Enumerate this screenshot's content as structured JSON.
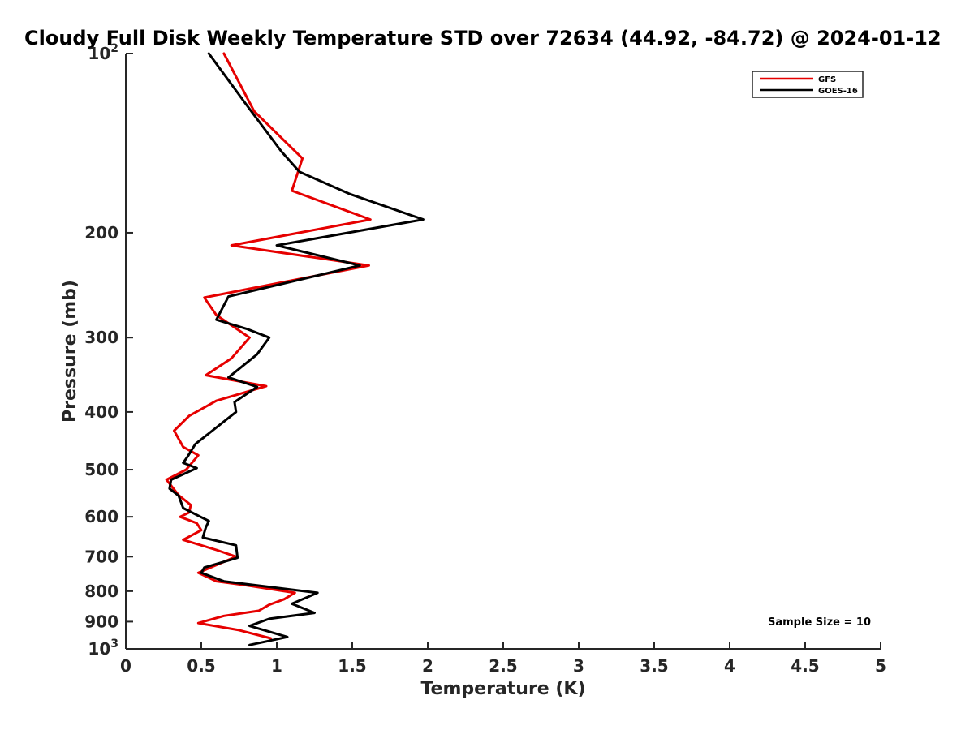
{
  "chart_data": {
    "type": "line",
    "title": "Cloudy Full Disk Weekly Temperature STD over 72634 (44.92, -84.72) @ 2024-01-12",
    "xlabel": "Temperature (K)",
    "ylabel": "Pressure (mb)",
    "xlim": [
      0,
      5
    ],
    "ylim": [
      100,
      1000
    ],
    "y_scale": "log",
    "y_reversed": true,
    "x_ticks": [
      "0",
      "0.5",
      "1",
      "1.5",
      "2",
      "2.5",
      "3",
      "3.5",
      "4",
      "4.5",
      "5"
    ],
    "y_ticks": [
      {
        "value": 100,
        "base": "10",
        "exp": "2"
      },
      {
        "value": 200,
        "label": "200"
      },
      {
        "value": 300,
        "label": "300"
      },
      {
        "value": 400,
        "label": "400"
      },
      {
        "value": 500,
        "label": "500"
      },
      {
        "value": 600,
        "label": "600"
      },
      {
        "value": 700,
        "label": "700"
      },
      {
        "value": 800,
        "label": "800"
      },
      {
        "value": 900,
        "label": "900"
      },
      {
        "value": 1000,
        "base": "10",
        "exp": "3"
      }
    ],
    "grid": false,
    "legend_position": "top-right",
    "annotation": "Sample Size = 10",
    "series": [
      {
        "name": "GFS",
        "color": "#e60000",
        "points": [
          {
            "x": 0.65,
            "y": 100
          },
          {
            "x": 0.85,
            "y": 125
          },
          {
            "x": 1.17,
            "y": 150
          },
          {
            "x": 1.1,
            "y": 170
          },
          {
            "x": 1.62,
            "y": 190
          },
          {
            "x": 0.7,
            "y": 210
          },
          {
            "x": 1.61,
            "y": 227
          },
          {
            "x": 0.52,
            "y": 257
          },
          {
            "x": 0.6,
            "y": 275
          },
          {
            "x": 0.82,
            "y": 300
          },
          {
            "x": 0.7,
            "y": 325
          },
          {
            "x": 0.53,
            "y": 347
          },
          {
            "x": 0.93,
            "y": 362
          },
          {
            "x": 0.6,
            "y": 383
          },
          {
            "x": 0.42,
            "y": 406
          },
          {
            "x": 0.32,
            "y": 430
          },
          {
            "x": 0.38,
            "y": 458
          },
          {
            "x": 0.48,
            "y": 473
          },
          {
            "x": 0.4,
            "y": 500
          },
          {
            "x": 0.27,
            "y": 520
          },
          {
            "x": 0.35,
            "y": 552
          },
          {
            "x": 0.43,
            "y": 573
          },
          {
            "x": 0.42,
            "y": 590
          },
          {
            "x": 0.36,
            "y": 600
          },
          {
            "x": 0.47,
            "y": 615
          },
          {
            "x": 0.5,
            "y": 632
          },
          {
            "x": 0.38,
            "y": 656
          },
          {
            "x": 0.6,
            "y": 682
          },
          {
            "x": 0.73,
            "y": 700
          },
          {
            "x": 0.48,
            "y": 745
          },
          {
            "x": 0.6,
            "y": 770
          },
          {
            "x": 0.8,
            "y": 782
          },
          {
            "x": 1.12,
            "y": 805
          },
          {
            "x": 1.05,
            "y": 825
          },
          {
            "x": 0.95,
            "y": 843
          },
          {
            "x": 0.88,
            "y": 863
          },
          {
            "x": 0.65,
            "y": 880
          },
          {
            "x": 0.48,
            "y": 905
          },
          {
            "x": 0.75,
            "y": 930
          },
          {
            "x": 0.96,
            "y": 960
          }
        ]
      },
      {
        "name": "GOES-16",
        "color": "#000000",
        "points": [
          {
            "x": 0.55,
            "y": 100
          },
          {
            "x": 0.8,
            "y": 122
          },
          {
            "x": 1.03,
            "y": 146
          },
          {
            "x": 1.15,
            "y": 158
          },
          {
            "x": 1.48,
            "y": 172
          },
          {
            "x": 1.97,
            "y": 190
          },
          {
            "x": 1.0,
            "y": 210
          },
          {
            "x": 1.55,
            "y": 227
          },
          {
            "x": 0.68,
            "y": 256
          },
          {
            "x": 0.6,
            "y": 280
          },
          {
            "x": 0.8,
            "y": 290
          },
          {
            "x": 0.95,
            "y": 300
          },
          {
            "x": 0.87,
            "y": 320
          },
          {
            "x": 0.68,
            "y": 350
          },
          {
            "x": 0.87,
            "y": 363
          },
          {
            "x": 0.72,
            "y": 385
          },
          {
            "x": 0.73,
            "y": 400
          },
          {
            "x": 0.46,
            "y": 453
          },
          {
            "x": 0.41,
            "y": 475
          },
          {
            "x": 0.38,
            "y": 487
          },
          {
            "x": 0.47,
            "y": 497
          },
          {
            "x": 0.3,
            "y": 520
          },
          {
            "x": 0.29,
            "y": 538
          },
          {
            "x": 0.35,
            "y": 553
          },
          {
            "x": 0.38,
            "y": 580
          },
          {
            "x": 0.55,
            "y": 610
          },
          {
            "x": 0.53,
            "y": 625
          },
          {
            "x": 0.51,
            "y": 650
          },
          {
            "x": 0.73,
            "y": 670
          },
          {
            "x": 0.74,
            "y": 703
          },
          {
            "x": 0.52,
            "y": 730
          },
          {
            "x": 0.5,
            "y": 745
          },
          {
            "x": 0.65,
            "y": 770
          },
          {
            "x": 1.27,
            "y": 805
          },
          {
            "x": 1.1,
            "y": 840
          },
          {
            "x": 1.25,
            "y": 870
          },
          {
            "x": 0.95,
            "y": 890
          },
          {
            "x": 0.82,
            "y": 915
          },
          {
            "x": 1.07,
            "y": 955
          },
          {
            "x": 0.82,
            "y": 985
          }
        ]
      }
    ]
  }
}
